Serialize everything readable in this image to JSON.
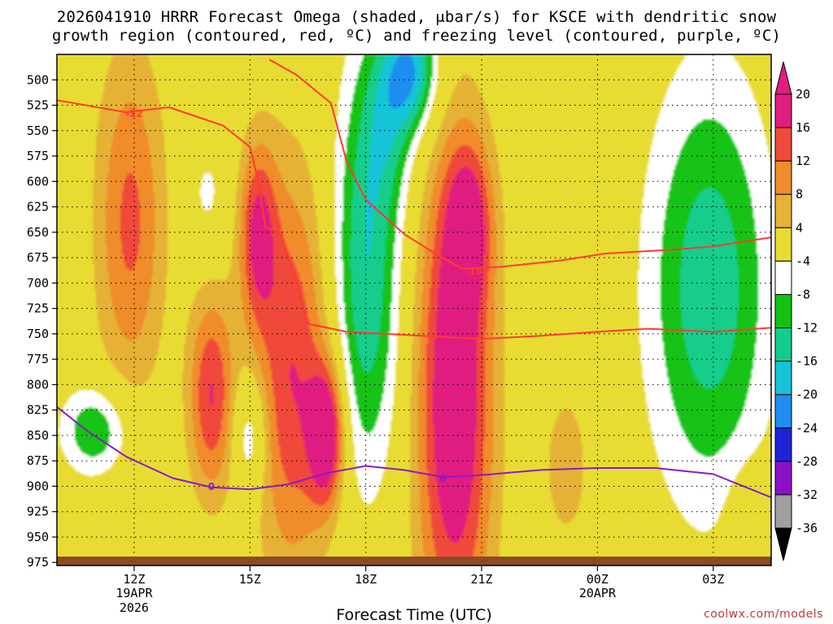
{
  "title_line1": "2026041910 HRRR Forecast Omega (shaded, μbar/s) for KSCE with dendritic snow",
  "title_line2": "growth region (contoured, red, ºC) and freezing level (contoured, purple, ºC)",
  "xaxis_title": "Forecast Time (UTC)",
  "credit": "coolwx.com/models",
  "colors": {
    "dgz_contour": "#ff3b2f",
    "freezing_contour": "#8c1ac8",
    "ground": "#8b4a25"
  },
  "chart_data": {
    "type": "heatmap",
    "title": "2026041910 HRRR Forecast Omega (shaded, μbar/s) for KSCE with dendritic snow growth region (contoured, red, ºC) and freezing level (contoured, purple, ºC)",
    "xlabel": "Forecast Time (UTC)",
    "ylabel": "",
    "y_reversed": true,
    "ylim": [
      978,
      475
    ],
    "xlim_hours": [
      10,
      28.5
    ],
    "y_ticks": [
      500,
      525,
      550,
      575,
      600,
      625,
      650,
      675,
      700,
      725,
      750,
      775,
      800,
      825,
      850,
      875,
      900,
      925,
      950,
      975
    ],
    "x_ticks": [
      {
        "hour": 12,
        "label": "12Z",
        "sub1": "19APR",
        "sub2": "2026"
      },
      {
        "hour": 15,
        "label": "15Z",
        "sub1": "",
        "sub2": ""
      },
      {
        "hour": 18,
        "label": "18Z",
        "sub1": "",
        "sub2": ""
      },
      {
        "hour": 21,
        "label": "21Z",
        "sub1": "",
        "sub2": ""
      },
      {
        "hour": 24,
        "label": "00Z",
        "sub1": "20APR",
        "sub2": ""
      },
      {
        "hour": 27,
        "label": "03Z",
        "sub1": "",
        "sub2": ""
      }
    ],
    "grid": true,
    "colorbar": {
      "levels": [
        -36,
        -32,
        -28,
        -24,
        -20,
        -16,
        -12,
        -8,
        -4,
        4,
        8,
        12,
        16,
        20
      ],
      "colors": [
        "#000000",
        "#a0a0a0",
        "#8c10c8",
        "#1e23d7",
        "#1f8ef0",
        "#16c4d8",
        "#12cd8c",
        "#12c312",
        "#ffffff",
        "#e8dc32",
        "#e5b235",
        "#f08c2c",
        "#f04a3a",
        "#e01e80"
      ],
      "placement": "right"
    },
    "omega_blobs": [
      {
        "hour": 11.9,
        "p": 640,
        "rh": 0.9,
        "rp": 170,
        "value": 13
      },
      {
        "hour": 11.0,
        "p": 845,
        "rh": 0.9,
        "rp": 45,
        "value": -12
      },
      {
        "hour": 13.9,
        "p": 615,
        "rh": 0.55,
        "rp": 60,
        "value": -5
      },
      {
        "hour": 14.0,
        "p": 810,
        "rh": 0.6,
        "rp": 100,
        "value": 16
      },
      {
        "hour": 15.0,
        "p": 850,
        "rh": 0.45,
        "rp": 60,
        "value": -10
      },
      {
        "hour": 15.2,
        "p": 650,
        "rh": 0.5,
        "rp": 90,
        "value": 15
      },
      {
        "hour": 16.1,
        "p": 790,
        "rh": 1.0,
        "rp": 200,
        "value": 16
      },
      {
        "hour": 17.0,
        "p": 850,
        "rh": 0.45,
        "rp": 70,
        "value": 20
      },
      {
        "hour": 18.0,
        "p": 690,
        "rh": 0.9,
        "rp": 200,
        "value": -16
      },
      {
        "hour": 18.6,
        "p": 540,
        "rh": 0.7,
        "rp": 90,
        "value": -9
      },
      {
        "hour": 19.2,
        "p": 490,
        "rh": 0.7,
        "rp": 60,
        "value": -18
      },
      {
        "hour": 20.3,
        "p": 815,
        "rh": 1.0,
        "rp": 250,
        "value": 22
      },
      {
        "hour": 20.7,
        "p": 640,
        "rh": 0.6,
        "rp": 80,
        "value": 12
      },
      {
        "hour": 23.2,
        "p": 880,
        "rh": 0.7,
        "rp": 90,
        "value": 6
      },
      {
        "hour": 26.9,
        "p": 705,
        "rh": 1.6,
        "rp": 210,
        "value": -15
      },
      {
        "hour": 28.0,
        "p": 930,
        "rh": 0.6,
        "rp": 50,
        "value": 5
      }
    ],
    "series": [
      {
        "name": "-12",
        "points": [
          [
            10,
            520
          ],
          [
            11.8,
            532
          ],
          [
            12.9,
            527
          ],
          [
            14.3,
            545
          ],
          [
            15,
            566
          ],
          [
            15.2,
            598
          ],
          [
            15.4,
            645
          ],
          [
            15.8,
            652
          ],
          [
            16.2,
            700
          ],
          [
            16.5,
            740
          ],
          [
            17.5,
            748
          ],
          [
            18.5,
            750
          ],
          [
            20,
            753
          ],
          [
            21,
            755
          ],
          [
            22.5,
            752
          ],
          [
            24,
            748
          ],
          [
            25.3,
            745
          ],
          [
            27,
            748
          ],
          [
            28.5,
            744
          ]
        ]
      },
      {
        "name": "-18",
        "points": [
          [
            15.5,
            480
          ],
          [
            16.2,
            495
          ],
          [
            17.1,
            523
          ],
          [
            17.5,
            580
          ],
          [
            18,
            618
          ],
          [
            19,
            652
          ],
          [
            19.8,
            671
          ],
          [
            20.5,
            686
          ],
          [
            21.5,
            684
          ],
          [
            23,
            678
          ],
          [
            24.2,
            671
          ],
          [
            26,
            667
          ],
          [
            27,
            664
          ],
          [
            28.5,
            655
          ]
        ]
      },
      {
        "name": "0",
        "points": [
          [
            10,
            822
          ],
          [
            10.8,
            846
          ],
          [
            11.8,
            871
          ],
          [
            13,
            892
          ],
          [
            14,
            901
          ],
          [
            15,
            903
          ],
          [
            16,
            898
          ],
          [
            17,
            887
          ],
          [
            18,
            880
          ],
          [
            19,
            884
          ],
          [
            20,
            891
          ],
          [
            21,
            889
          ],
          [
            22.5,
            884
          ],
          [
            24,
            882
          ],
          [
            25.5,
            882
          ],
          [
            27,
            888
          ],
          [
            28.5,
            911
          ]
        ]
      }
    ],
    "contour_labels": [
      {
        "text": "-12",
        "hour": 12.0,
        "p": 533,
        "series": "-12"
      },
      {
        "text": "-18",
        "hour": 20.8,
        "p": 688,
        "series": "-18"
      },
      {
        "text": "0",
        "hour": 14.0,
        "p": 900,
        "series": "0"
      },
      {
        "text": "0",
        "hour": 20.0,
        "p": 892,
        "series": "0"
      }
    ]
  }
}
